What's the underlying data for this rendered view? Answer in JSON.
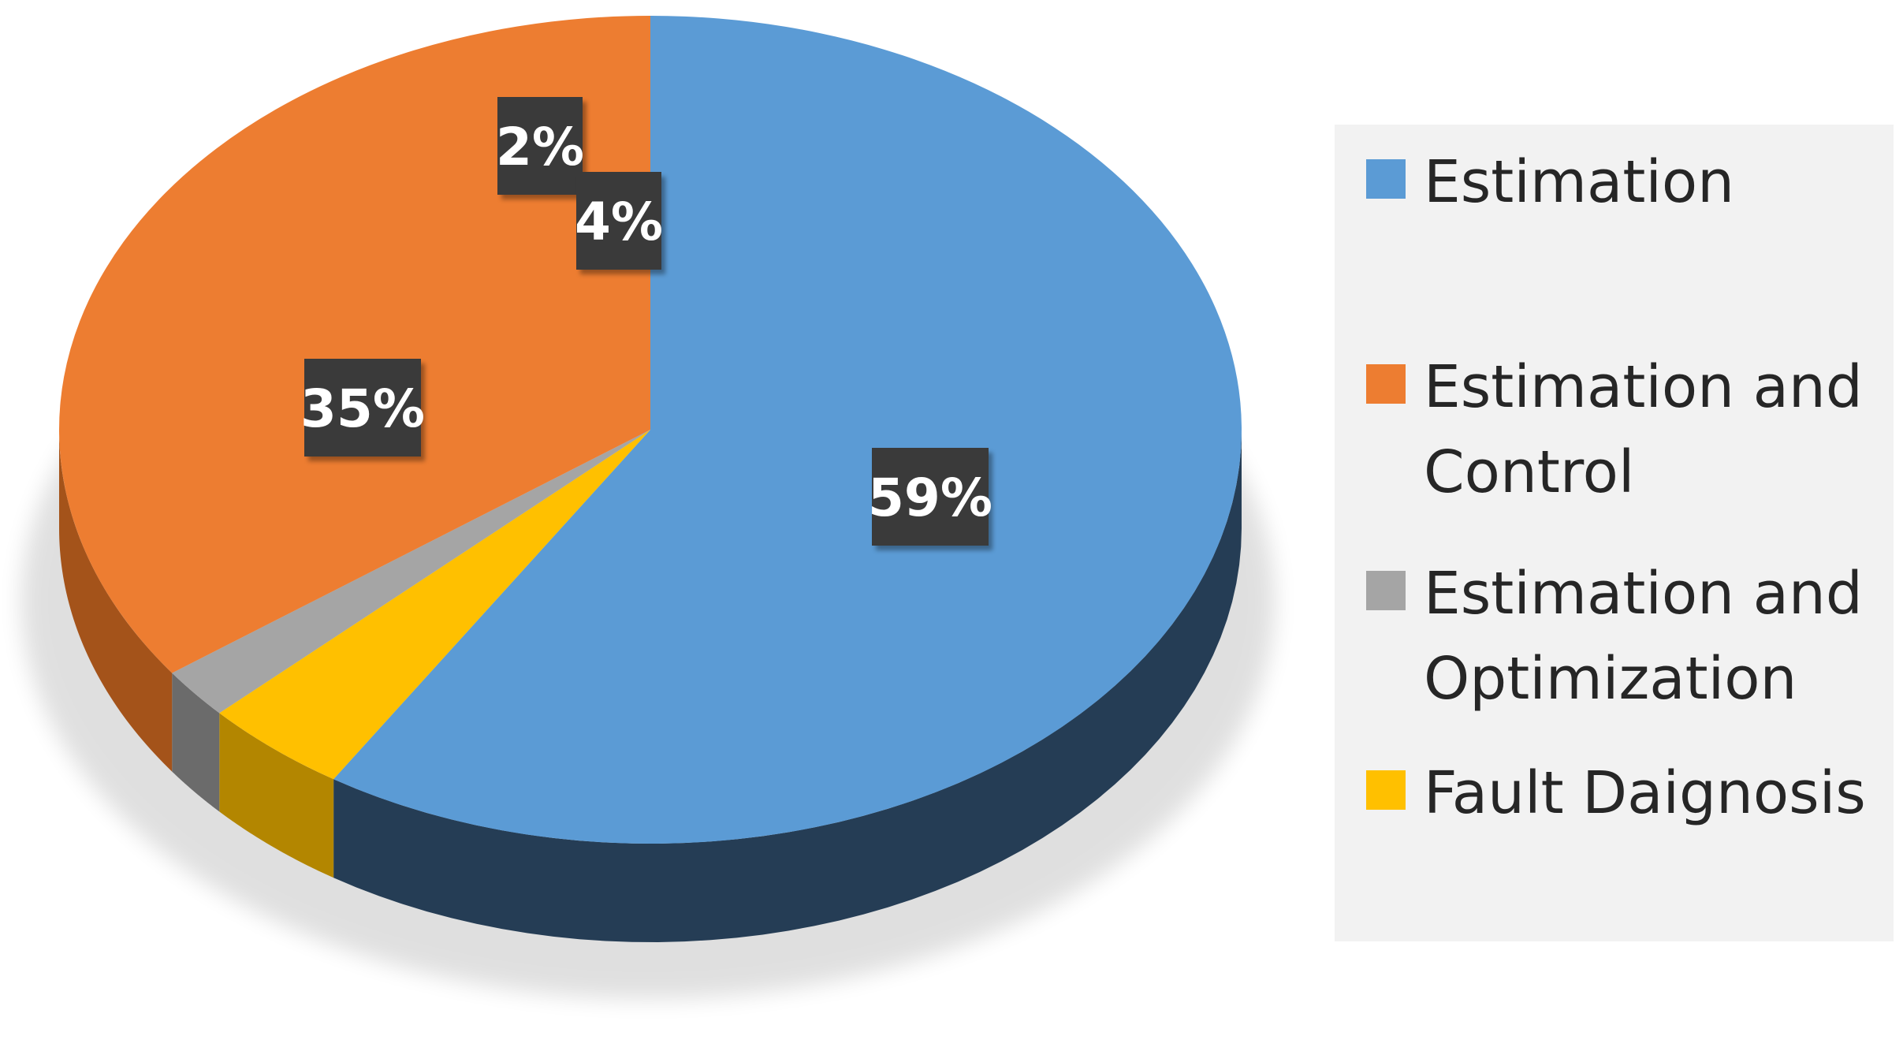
{
  "chart_data": {
    "type": "pie",
    "style": "3d",
    "categories": [
      "Estimation",
      "Estimation and Control",
      "Estimation and Optimization",
      "Fault Daignosis"
    ],
    "values": [
      59,
      35,
      2,
      4
    ],
    "data_labels": [
      "59%",
      "35%",
      "2%",
      "4%"
    ],
    "legend": {
      "placement": "right",
      "entries": [
        {
          "lines": [
            "Estimation"
          ]
        },
        {
          "lines": [
            "Estimation and",
            "Control"
          ]
        },
        {
          "lines": [
            "Estimation and",
            "Optimization"
          ]
        },
        {
          "lines": [
            "Fault Daignosis"
          ]
        }
      ]
    },
    "colors": [
      "#5b9bd5",
      "#ed7d31",
      "#a5a5a5",
      "#ffc000"
    ],
    "side_colors": [
      "#253d55",
      "#a4531a",
      "#6b6b6b",
      "#b38600"
    ]
  }
}
